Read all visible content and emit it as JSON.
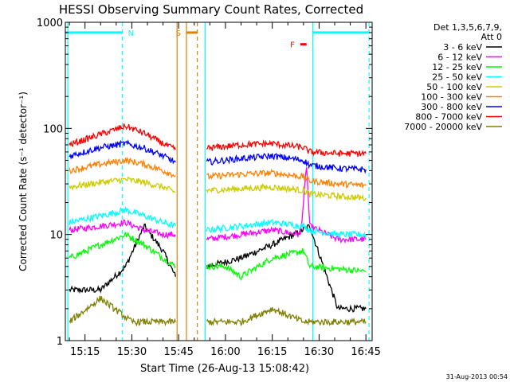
{
  "chart_data": {
    "type": "line",
    "title": "HESSI Observing Summary Count Rates, Corrected",
    "xlabel": "Start Time (26-Aug-13 15:08:42)",
    "ylabel": "Corrected Count Rate (s⁻¹ detector⁻¹)",
    "ylog": true,
    "ylim": [
      1,
      1000
    ],
    "yticks": [
      {
        "v": 1,
        "label": "1"
      },
      {
        "v": 10,
        "label": "10"
      },
      {
        "v": 100,
        "label": "100"
      },
      {
        "v": 1000,
        "label": "1000"
      }
    ],
    "xlim": [
      "15:08:42",
      "16:47:00"
    ],
    "xticks": [
      "15:15",
      "15:30",
      "15:45",
      "16:00",
      "16:15",
      "16:30",
      "16:45"
    ],
    "legend_header": [
      "Det 1,3,5,6,7,9,",
      "Att 0"
    ],
    "legend_position": "right",
    "grid": false,
    "series": [
      {
        "name": "3 - 6 keV",
        "color": "#000000",
        "segments": [
          {
            "x": [
              "15:10:00",
              "15:20:00",
              "15:28:00",
              "15:34:00",
              "15:40:00",
              "15:44:00"
            ],
            "y": [
              3,
              3,
              5,
              12,
              7,
              4
            ]
          },
          {
            "x": [
              "15:54:00",
              "16:05:00",
              "16:15:00",
              "16:22:00",
              "16:27:00",
              "16:36:00",
              "16:45:00"
            ],
            "y": [
              5,
              6,
              8,
              10,
              12,
              2,
              2
            ]
          }
        ]
      },
      {
        "name": "6 - 12 keV",
        "color": "#ff00ff",
        "segments": [
          {
            "x": [
              "15:10:00",
              "15:20:00",
              "15:28:00",
              "15:34:00",
              "15:40:00",
              "15:44:00"
            ],
            "y": [
              11,
              12,
              13,
              11,
              10,
              10
            ]
          },
          {
            "x": [
              "15:54:00",
              "16:05:00",
              "16:15:00",
              "16:24:00",
              "16:25:00",
              "16:26:00",
              "16:27:00",
              "16:36:00",
              "16:45:00"
            ],
            "y": [
              9,
              10,
              11,
              10,
              20,
              45,
              12,
              9,
              9
            ]
          }
        ]
      },
      {
        "name": "12 - 25 keV",
        "color": "#00ff00",
        "segments": [
          {
            "x": [
              "15:10:00",
              "15:20:00",
              "15:28:00",
              "15:34:00",
              "15:40:00",
              "15:44:00"
            ],
            "y": [
              6,
              8,
              10,
              8,
              6,
              5
            ]
          },
          {
            "x": [
              "15:54:00",
              "16:00:00",
              "16:05:00",
              "16:15:00",
              "16:25:00",
              "16:27:00",
              "16:45:00"
            ],
            "y": [
              5,
              5,
              4,
              6,
              7,
              5,
              4.5
            ]
          }
        ]
      },
      {
        "name": "25 - 50 keV",
        "color": "#00ffff",
        "segments": [
          {
            "x": [
              "15:10:00",
              "15:20:00",
              "15:28:00",
              "15:34:00",
              "15:40:00",
              "15:44:00"
            ],
            "y": [
              13,
              15,
              17,
              15,
              13,
              12
            ]
          },
          {
            "x": [
              "15:54:00",
              "16:05:00",
              "16:15:00",
              "16:25:00",
              "16:27:00",
              "16:36:00",
              "16:45:00"
            ],
            "y": [
              11,
              12,
              13,
              12,
              11,
              10,
              10
            ]
          }
        ]
      },
      {
        "name": "50 - 100 keV",
        "color": "#cccc00",
        "segments": [
          {
            "x": [
              "15:10:00",
              "15:20:00",
              "15:28:00",
              "15:34:00",
              "15:40:00",
              "15:44:00"
            ],
            "y": [
              28,
              31,
              33,
              31,
              28,
              25
            ]
          },
          {
            "x": [
              "15:54:00",
              "16:05:00",
              "16:15:00",
              "16:25:00",
              "16:27:00",
              "16:36:00",
              "16:45:00"
            ],
            "y": [
              26,
              27,
              28,
              26,
              24,
              23,
              22
            ]
          }
        ]
      },
      {
        "name": "100 - 300 keV",
        "color": "#ff8000",
        "segments": [
          {
            "x": [
              "15:10:00",
              "15:20:00",
              "15:28:00",
              "15:34:00",
              "15:40:00",
              "15:44:00"
            ],
            "y": [
              40,
              46,
              50,
              46,
              40,
              36
            ]
          },
          {
            "x": [
              "15:54:00",
              "16:05:00",
              "16:15:00",
              "16:25:00",
              "16:27:00",
              "16:36:00",
              "16:45:00"
            ],
            "y": [
              35,
              37,
              38,
              35,
              32,
              30,
              29
            ]
          }
        ]
      },
      {
        "name": "300 - 800 keV",
        "color": "#0000ff",
        "segments": [
          {
            "x": [
              "15:10:00",
              "15:20:00",
              "15:28:00",
              "15:34:00",
              "15:40:00",
              "15:44:00"
            ],
            "y": [
              55,
              66,
              72,
              65,
              55,
              48
            ]
          },
          {
            "x": [
              "15:54:00",
              "16:05:00",
              "16:15:00",
              "16:25:00",
              "16:27:00",
              "16:36:00",
              "16:45:00"
            ],
            "y": [
              48,
              52,
              55,
              50,
              45,
              42,
              41
            ]
          }
        ]
      },
      {
        "name": "800 - 7000 keV",
        "color": "#ff0000",
        "segments": [
          {
            "x": [
              "15:10:00",
              "15:20:00",
              "15:28:00",
              "15:34:00",
              "15:40:00",
              "15:44:00"
            ],
            "y": [
              70,
              88,
              105,
              90,
              72,
              63
            ]
          },
          {
            "x": [
              "15:54:00",
              "16:05:00",
              "16:15:00",
              "16:25:00",
              "16:27:00",
              "16:36:00",
              "16:45:00"
            ],
            "y": [
              65,
              70,
              72,
              66,
              60,
              58,
              58
            ]
          }
        ]
      },
      {
        "name": "7000 - 20000 keV",
        "color": "#808000",
        "segments": [
          {
            "x": [
              "15:10:00",
              "15:20:00",
              "15:30:00",
              "15:40:00",
              "15:44:00"
            ],
            "y": [
              1.5,
              2.5,
              1.5,
              1.5,
              1.5
            ]
          },
          {
            "x": [
              "15:54:00",
              "16:05:00",
              "16:15:00",
              "16:25:00",
              "16:27:00",
              "16:45:00"
            ],
            "y": [
              1.5,
              1.5,
              2,
              1.5,
              1.5,
              1.5
            ]
          }
        ]
      }
    ],
    "flag_bars": [
      {
        "label": "N",
        "color": "#00ffff",
        "y": 800,
        "segments": [
          [
            "15:08:42",
            "15:27:00"
          ],
          [
            "16:28:00",
            "16:46:00"
          ]
        ]
      },
      {
        "label": "S",
        "color": "#e08000",
        "y": 800,
        "segments": [
          [
            "15:47:30",
            "15:51:00"
          ]
        ]
      },
      {
        "label": "F",
        "color": "#ff0000",
        "y": 620,
        "segments": [
          [
            "16:24:00",
            "16:26:00"
          ]
        ]
      }
    ],
    "vertical_lines": [
      {
        "x": "15:09:30",
        "color": "#00ffff",
        "style": "solid"
      },
      {
        "x": "15:27:00",
        "color": "#00ffff",
        "style": "dashed"
      },
      {
        "x": "15:44:30",
        "color": "#e08000",
        "style": "solid"
      },
      {
        "x": "15:47:30",
        "color": "#e08000",
        "style": "solid"
      },
      {
        "x": "15:51:00",
        "color": "#e08000",
        "style": "dashed"
      },
      {
        "x": "15:53:30",
        "color": "#00ffff",
        "style": "solid"
      },
      {
        "x": "16:28:00",
        "color": "#00ffff",
        "style": "solid"
      },
      {
        "x": "16:46:00",
        "color": "#00ffff",
        "style": "dashed"
      }
    ],
    "timestamp": "31-Aug-2013 00:54"
  }
}
